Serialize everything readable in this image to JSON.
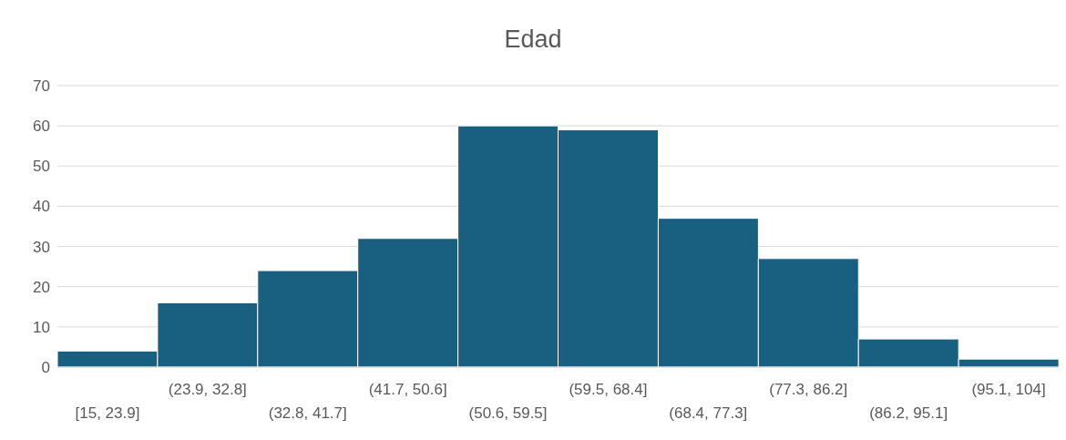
{
  "chart_data": {
    "type": "bar",
    "title": "Edad",
    "categories": [
      "[15, 23.9]",
      "(23.9, 32.8]",
      "(32.8, 41.7]",
      "(41.7, 50.6]",
      "(50.6, 59.5]",
      "(59.5, 68.4]",
      "(68.4, 77.3]",
      "(77.3, 86.2]",
      "(86.2, 95.1]",
      "(95.1, 104]"
    ],
    "values": [
      4,
      16,
      24,
      32,
      60,
      59,
      37,
      27,
      7,
      2
    ],
    "color": "#185f80",
    "ylim": [
      0,
      70
    ],
    "yticks": [
      0,
      10,
      20,
      30,
      40,
      50,
      60,
      70
    ],
    "grid": "y"
  }
}
